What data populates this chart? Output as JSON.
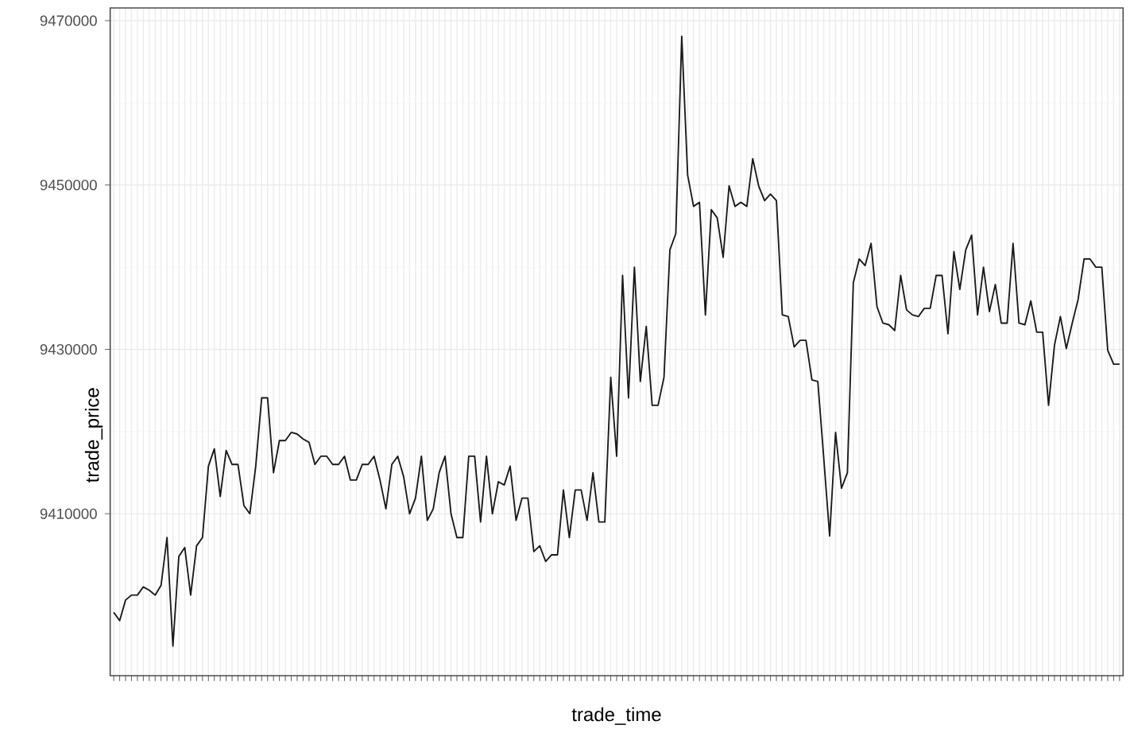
{
  "chart_data": {
    "type": "line",
    "xlabel": "trade_time",
    "ylabel": "trade_price",
    "categories": [
      null,
      null,
      null,
      null,
      null,
      null,
      null,
      null,
      null,
      null,
      null,
      null,
      null,
      null,
      null,
      null,
      null,
      null,
      null,
      null,
      null,
      null,
      null,
      null,
      null,
      null,
      null,
      null,
      null,
      null,
      null,
      null,
      null,
      null,
      null,
      null,
      null,
      null,
      null,
      null,
      null,
      null,
      null,
      null,
      null,
      null,
      null,
      null,
      null,
      null,
      null,
      null,
      null,
      null,
      null,
      null,
      null,
      null,
      null,
      null,
      null,
      null,
      null,
      null,
      null,
      null,
      null,
      null,
      null,
      null,
      null,
      null,
      null,
      null,
      null,
      null,
      null,
      null,
      null,
      null,
      null,
      null,
      null,
      null,
      null,
      null,
      null,
      null,
      null,
      null,
      null,
      null,
      null,
      null,
      null,
      null,
      null,
      null,
      null,
      null,
      null,
      null,
      null,
      null,
      null,
      null,
      null,
      null,
      null,
      null,
      null,
      null,
      null,
      null,
      null,
      null,
      null,
      null,
      null,
      null,
      null,
      null,
      null,
      null,
      null,
      null,
      null,
      null,
      null,
      null,
      null,
      null,
      null,
      null,
      null,
      null,
      null,
      null,
      null,
      null,
      null,
      null,
      null,
      null,
      null,
      null,
      null,
      null,
      null,
      null,
      null,
      null,
      null,
      null,
      null,
      null,
      null,
      null,
      null,
      null,
      null,
      null,
      null,
      null,
      null,
      null,
      null,
      null,
      null,
      null,
      null
    ],
    "values": [
      9398000,
      9397000,
      9399500,
      9400100,
      9400100,
      9401100,
      9400700,
      9400100,
      9401300,
      9407100,
      9393900,
      9404800,
      9405900,
      9400100,
      9406100,
      9407100,
      9415800,
      9417900,
      9412100,
      9417700,
      9416000,
      9416000,
      9411000,
      9410000,
      9415800,
      9424100,
      9424100,
      9415000,
      9418900,
      9418900,
      9419900,
      9419700,
      9419100,
      9418700,
      9416000,
      9417000,
      9417000,
      9416000,
      9416000,
      9417000,
      9414100,
      9414100,
      9416000,
      9416000,
      9417000,
      9414100,
      9410600,
      9416000,
      9417000,
      9414500,
      9410000,
      9411900,
      9417000,
      9409200,
      9410600,
      9415000,
      9417000,
      9410000,
      9407100,
      9407100,
      9417000,
      9417000,
      9409000,
      9417000,
      9410000,
      9413900,
      9413500,
      9415800,
      9409200,
      9411900,
      9411900,
      9405400,
      9406100,
      9404200,
      9405000,
      9405000,
      9412900,
      9407100,
      9412900,
      9412900,
      9409200,
      9415000,
      9409000,
      9409000,
      9426600,
      9417000,
      9439000,
      9424100,
      9440000,
      9426100,
      9432800,
      9423200,
      9423200,
      9426600,
      9442100,
      9444100,
      9468100,
      9451200,
      9447400,
      9447900,
      9434200,
      9447000,
      9446000,
      9441200,
      9449900,
      9447400,
      9447900,
      9447400,
      9453200,
      9449900,
      9448100,
      9448900,
      9448100,
      9434200,
      9434000,
      9430300,
      9431100,
      9431100,
      9426300,
      9426100,
      9416800,
      9407300,
      9419900,
      9413100,
      9415000,
      9438100,
      9441000,
      9440200,
      9442900,
      9435200,
      9433200,
      9433000,
      9432300,
      9439000,
      9434800,
      9434200,
      9434000,
      9435000,
      9435000,
      9439000,
      9439000,
      9431900,
      9441900,
      9437300,
      9442100,
      9443900,
      9434200,
      9440000,
      9434600,
      9437900,
      9433200,
      9433200,
      9442900,
      9433200,
      9433000,
      9435900,
      9432100,
      9432100,
      9423200,
      9430500,
      9434000,
      9430100,
      9433200,
      9436100,
      9441000,
      9441000,
      9440000,
      9440000,
      9429900,
      9428200,
      9428200
    ],
    "color": "#1a1a1a",
    "ylim": [
      9390300,
      9471550
    ],
    "yticks": [
      9410000,
      9430000,
      9450000,
      9470000
    ],
    "grid": true,
    "tick_labels": "y",
    "marker": "none",
    "line_style": "solid"
  }
}
